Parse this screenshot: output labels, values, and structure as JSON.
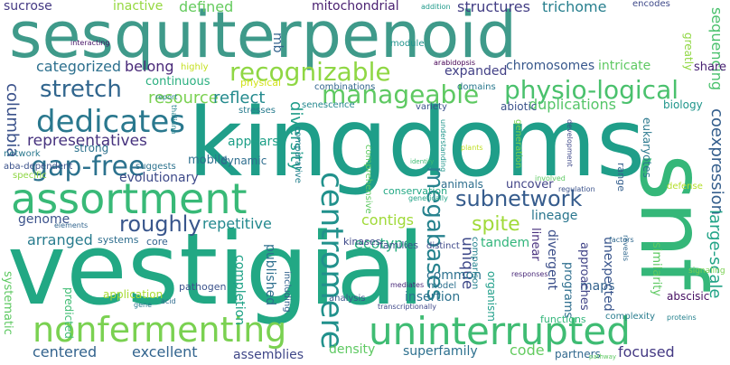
{
  "word_cloud": {
    "words": [
      {
        "text": "sesquiterpenoid",
        "color": "#3f9a8a"
      },
      {
        "text": "kingdoms",
        "color": "#1f9e89"
      },
      {
        "text": "vestigial",
        "color": "#22a884"
      },
      {
        "text": "snf",
        "color": "#35b779"
      },
      {
        "text": "assortment",
        "color": "#38b977"
      },
      {
        "text": "nonfermenting",
        "color": "#7ad151"
      },
      {
        "text": "uninterrupted",
        "color": "#3fbc73"
      },
      {
        "text": "recognizable",
        "color": "#8fd744"
      },
      {
        "text": "manageable",
        "color": "#5ec962"
      },
      {
        "text": "physio-logical",
        "color": "#4ac16d"
      },
      {
        "text": "dedicates",
        "color": "#2a788e"
      },
      {
        "text": "stretch",
        "color": "#31668e"
      },
      {
        "text": "gap-free",
        "color": "#2c728e"
      },
      {
        "text": "representatives",
        "color": "#46327e"
      },
      {
        "text": "subnetwork",
        "color": "#365c8d"
      },
      {
        "text": "centromere",
        "color": "#21918c"
      },
      {
        "text": "megabases",
        "color": "#26828e"
      },
      {
        "text": "roughly",
        "color": "#39568c"
      },
      {
        "text": "sucrose",
        "color": "#443983"
      },
      {
        "text": "inactive",
        "color": "#95d840"
      },
      {
        "text": "defined",
        "color": "#65cb5e"
      },
      {
        "text": "mitochondrial",
        "color": "#481f70"
      },
      {
        "text": "structures",
        "color": "#433e85"
      },
      {
        "text": "trichome",
        "color": "#277f8e"
      },
      {
        "text": "sequencing",
        "color": "#4ac16d"
      },
      {
        "text": "categorized",
        "color": "#2d708e"
      },
      {
        "text": "belong",
        "color": "#482878"
      },
      {
        "text": "expanded",
        "color": "#424086"
      },
      {
        "text": "chromosomes",
        "color": "#38588c"
      },
      {
        "text": "intricate",
        "color": "#5ec962"
      },
      {
        "text": "share",
        "color": "#482173"
      },
      {
        "text": "resource",
        "color": "#7ad151"
      },
      {
        "text": "reflect",
        "color": "#238a8d"
      },
      {
        "text": "duplications",
        "color": "#54c568"
      },
      {
        "text": "columbia",
        "color": "#3b528b"
      },
      {
        "text": "diversity",
        "color": "#1e9c89"
      },
      {
        "text": "coexpression",
        "color": "#355f8d"
      },
      {
        "text": "large-scale",
        "color": "#20a386"
      },
      {
        "text": "ecotype",
        "color": "#29af7f"
      },
      {
        "text": "contigs",
        "color": "#a0da39"
      },
      {
        "text": "spite",
        "color": "#a0da39"
      },
      {
        "text": "unique",
        "color": "#3e4989"
      },
      {
        "text": "tandem",
        "color": "#31b57b"
      },
      {
        "text": "repetitive",
        "color": "#23898e"
      },
      {
        "text": "lineage",
        "color": "#2a768e"
      },
      {
        "text": "arranged",
        "color": "#287c8e"
      },
      {
        "text": "genome",
        "color": "#3b528b"
      },
      {
        "text": "mobile",
        "color": "#2d708e"
      },
      {
        "text": "strong",
        "color": "#2c728e"
      },
      {
        "text": "dynamic",
        "color": "#2e6e8e"
      },
      {
        "text": "evolutionary",
        "color": "#3e4a89"
      },
      {
        "text": "appears",
        "color": "#1fa088"
      },
      {
        "text": "published",
        "color": "#2e6f8e"
      },
      {
        "text": "completion",
        "color": "#1fa287"
      },
      {
        "text": "application",
        "color": "#a8db34"
      },
      {
        "text": "linear",
        "color": "#472f7d"
      },
      {
        "text": "divergent",
        "color": "#3c4f8a"
      },
      {
        "text": "maps",
        "color": "#33628d"
      },
      {
        "text": "unexpected",
        "color": "#39558c"
      },
      {
        "text": "similarity",
        "color": "#5ec962"
      },
      {
        "text": "abscisic",
        "color": "#471063"
      },
      {
        "text": "systematic",
        "color": "#5ec962"
      },
      {
        "text": "predicted",
        "color": "#3fbc73"
      },
      {
        "text": "common",
        "color": "#2d708e"
      },
      {
        "text": "insertion",
        "color": "#2c728e"
      },
      {
        "text": "programs",
        "color": "#2e6e8e"
      },
      {
        "text": "approaches",
        "color": "#414487"
      },
      {
        "text": "centered",
        "color": "#33638d"
      },
      {
        "text": "excellent",
        "color": "#32648e"
      },
      {
        "text": "density",
        "color": "#5ec962"
      },
      {
        "text": "superfamily",
        "color": "#2d708e"
      },
      {
        "text": "code",
        "color": "#63cb5f"
      },
      {
        "text": "focused",
        "color": "#443983"
      },
      {
        "text": "partners",
        "color": "#31688e"
      },
      {
        "text": "assemblies",
        "color": "#3f4788"
      },
      {
        "text": "biology",
        "color": "#1f958b"
      },
      {
        "text": "eukaryotes",
        "color": "#2a788e"
      },
      {
        "text": "abiotic",
        "color": "#3b528b"
      },
      {
        "text": "continuous",
        "color": "#29af7f"
      },
      {
        "text": "physical",
        "color": "#d2e21b"
      },
      {
        "text": "highly",
        "color": "#c5e021"
      },
      {
        "text": "interacting",
        "color": "#481668"
      },
      {
        "text": "module",
        "color": "#20938c"
      },
      {
        "text": "combinations",
        "color": "#32658e"
      },
      {
        "text": "domains",
        "color": "#2a788e"
      },
      {
        "text": "arabidopsis",
        "color": "#440154"
      },
      {
        "text": "addition",
        "color": "#1f9a8a"
      },
      {
        "text": "encodes",
        "color": "#3e4989"
      },
      {
        "text": "greatly",
        "color": "#90d743"
      },
      {
        "text": "mb",
        "color": "#33638d"
      },
      {
        "text": "stresses",
        "color": "#287c8e"
      },
      {
        "text": "senescence",
        "color": "#24878e"
      },
      {
        "text": "variety",
        "color": "#3b528b"
      },
      {
        "text": "thaliana",
        "color": "#25848e"
      },
      {
        "text": "report",
        "color": "#26828e"
      },
      {
        "text": "network",
        "color": "#2a788e"
      },
      {
        "text": "aba-dependent",
        "color": "#3b528b"
      },
      {
        "text": "specific",
        "color": "#8fd744"
      },
      {
        "text": "suggests",
        "color": "#2c728e"
      },
      {
        "text": "comparative",
        "color": "#26828e"
      },
      {
        "text": "comprehensive",
        "color": "#5ec962"
      },
      {
        "text": "understanding",
        "color": "#1f958b"
      },
      {
        "text": "generation",
        "color": "#7ad151"
      },
      {
        "text": "plants",
        "color": "#c0df25"
      },
      {
        "text": "identify",
        "color": "#3fbc73"
      },
      {
        "text": "development",
        "color": "#3e4989"
      },
      {
        "text": "involved",
        "color": "#5ec962"
      },
      {
        "text": "regulation",
        "color": "#3b528b"
      },
      {
        "text": "defense",
        "color": "#b5de2b"
      },
      {
        "text": "animals",
        "color": "#2e6e8e"
      },
      {
        "text": "uncover",
        "color": "#414487"
      },
      {
        "text": "conservation",
        "color": "#22a884"
      },
      {
        "text": "genetically",
        "color": "#20a386"
      },
      {
        "text": "range",
        "color": "#355f8d"
      },
      {
        "text": "elements",
        "color": "#32658e"
      },
      {
        "text": "systems",
        "color": "#2e6e8e"
      },
      {
        "text": "core",
        "color": "#33638d"
      },
      {
        "text": "kinases",
        "color": "#3e4989"
      },
      {
        "text": "families",
        "color": "#3b528b"
      },
      {
        "text": "distinct",
        "color": "#3e4989"
      },
      {
        "text": "comparison",
        "color": "#25838e"
      },
      {
        "text": "factors",
        "color": "#31688e"
      },
      {
        "text": "signaling",
        "color": "#7ad151"
      },
      {
        "text": "responses",
        "color": "#482878"
      },
      {
        "text": "reveals",
        "color": "#31688e"
      },
      {
        "text": "organism",
        "color": "#1f9e89"
      },
      {
        "text": "mediates",
        "color": "#482878"
      },
      {
        "text": "pathogen",
        "color": "#3b528b"
      },
      {
        "text": "including",
        "color": "#33628d"
      },
      {
        "text": "model",
        "color": "#2d708e"
      },
      {
        "text": "analysis",
        "color": "#39568c"
      },
      {
        "text": "gene",
        "color": "#29798e"
      },
      {
        "text": "acid",
        "color": "#2f6b8e"
      },
      {
        "text": "transcriptionally",
        "color": "#3f4889"
      },
      {
        "text": "functions",
        "color": "#32b67a"
      },
      {
        "text": "complexity",
        "color": "#287c8e"
      },
      {
        "text": "proteins",
        "color": "#26828e"
      },
      {
        "text": "pathway",
        "color": "#5ec962"
      }
    ]
  }
}
